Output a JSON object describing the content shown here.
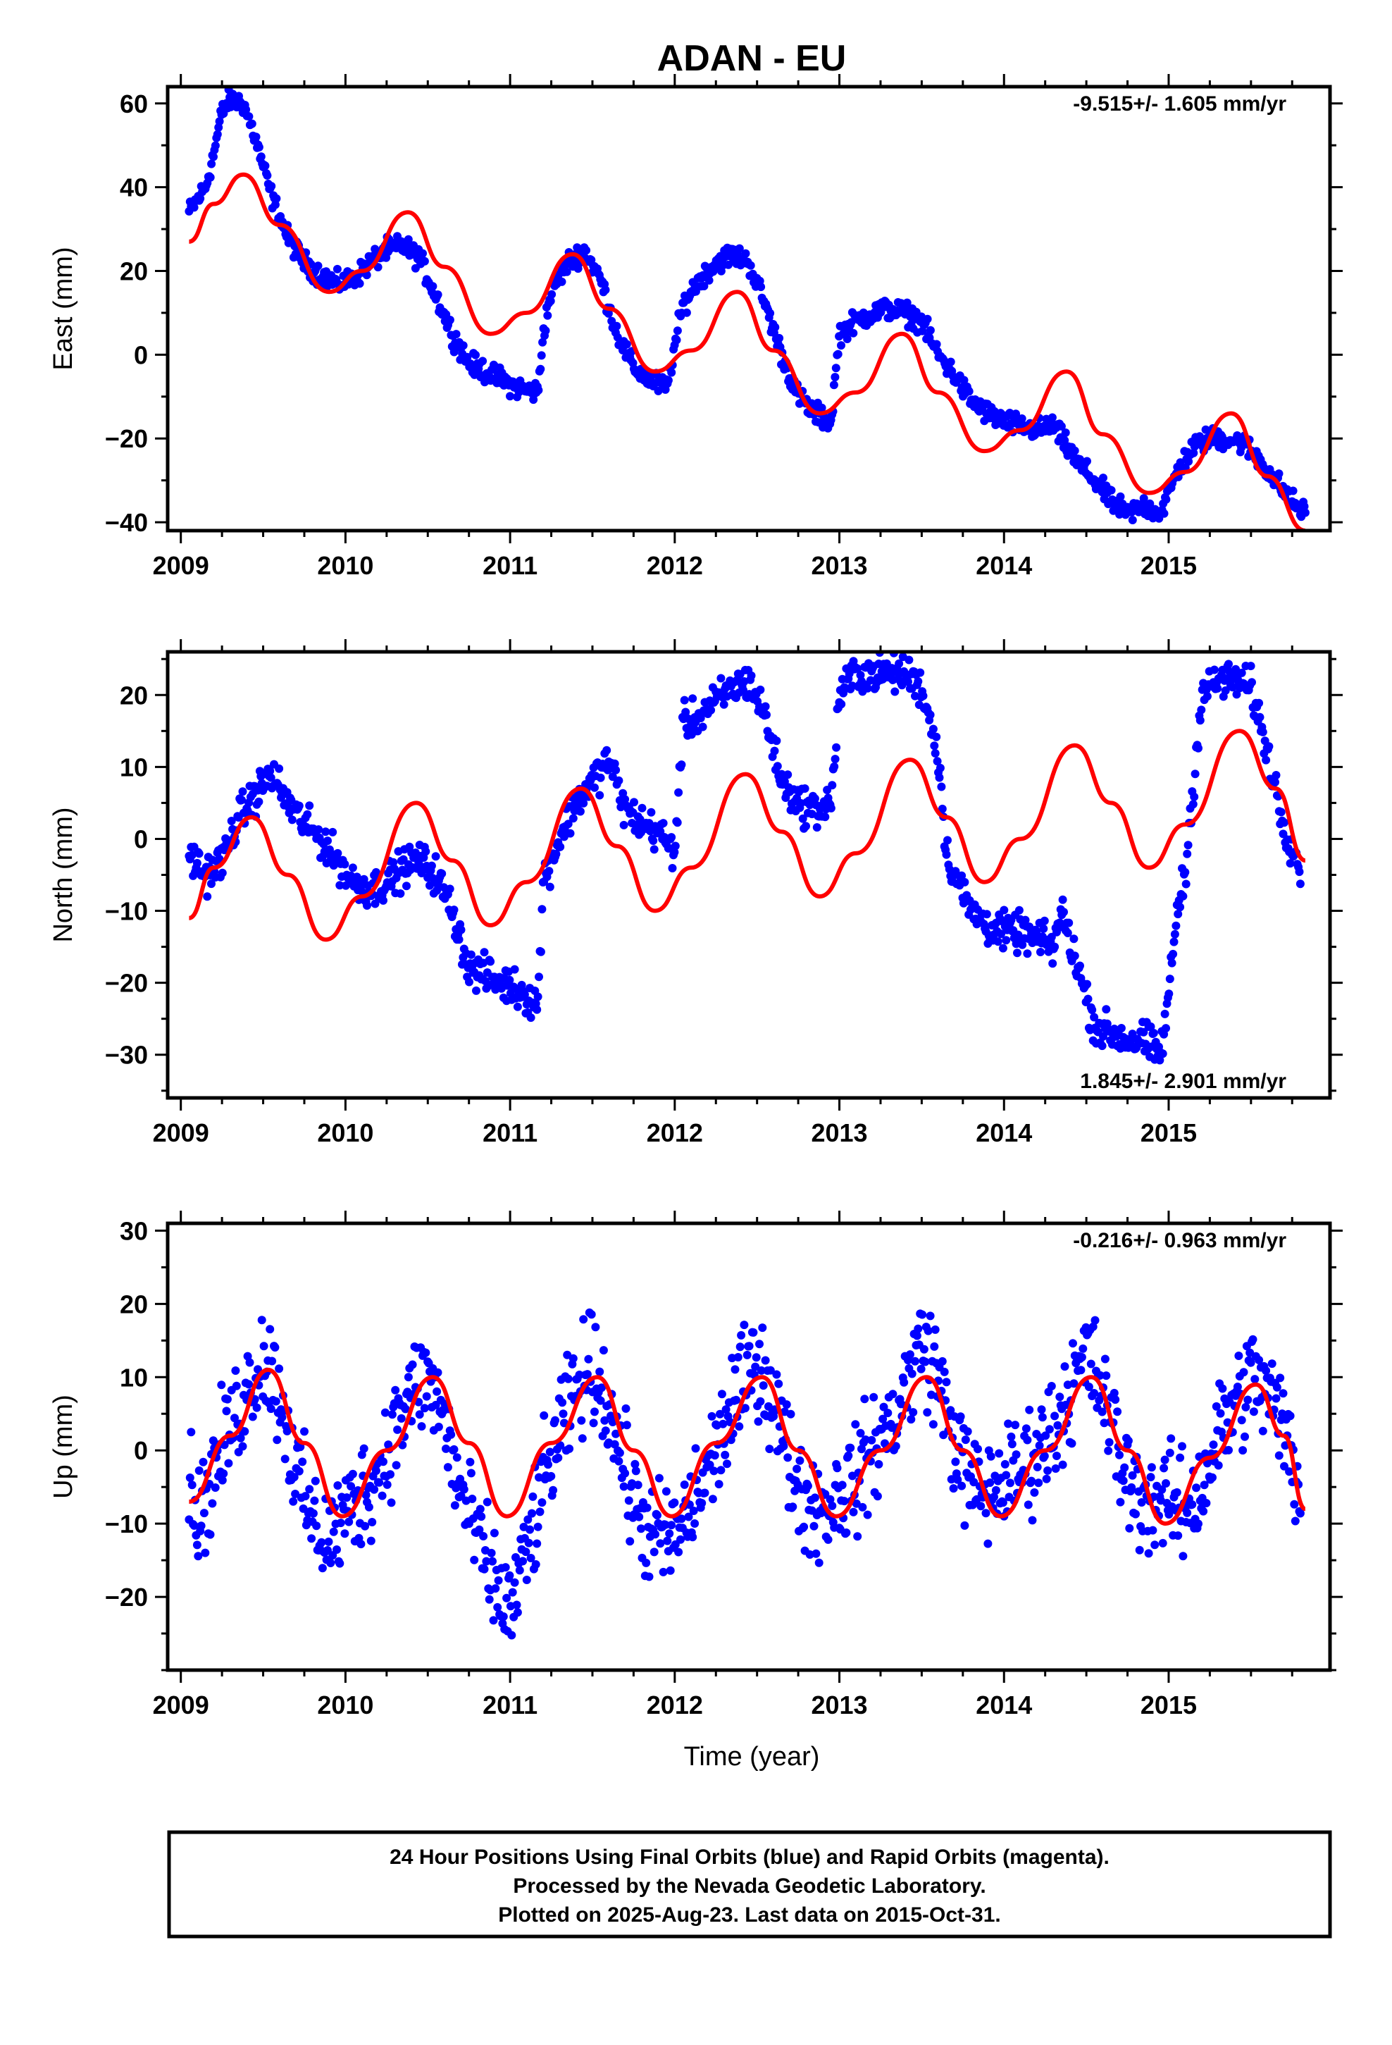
{
  "chart_data": {
    "type": "scatter",
    "title": "ADAN - EU",
    "xlabel": "Time (year)",
    "x_ticks": [
      "2009",
      "2010",
      "2011",
      "2012",
      "2013",
      "2014",
      "2015"
    ],
    "xlim": [
      2008.92,
      2015.98
    ],
    "colors": {
      "observed": "#0000ff",
      "model": "#ff0000"
    },
    "panels": [
      {
        "ylabel": "East (mm)",
        "ylim": [
          -42,
          64
        ],
        "y_ticks": [
          -40,
          -20,
          0,
          20,
          40,
          60
        ],
        "rate_text": "-9.515+/- 1.605 mm/yr",
        "rate_position": "top-right",
        "series": [
          {
            "role": "observed",
            "x": [
              2009.05,
              2009.15,
              2009.2,
              2009.25,
              2009.3,
              2009.38,
              2009.45,
              2009.55,
              2009.65,
              2009.75,
              2009.85,
              2009.95,
              2010.05,
              2010.15,
              2010.25,
              2010.35,
              2010.45,
              2010.55,
              2010.65,
              2010.75,
              2010.85,
              2010.95,
              2011.05,
              2011.17,
              2011.2,
              2011.25,
              2011.35,
              2011.45,
              2011.55,
              2011.65,
              2011.75,
              2011.85,
              2011.95,
              2012.05,
              2012.15,
              2012.25,
              2012.35,
              2012.45,
              2012.55,
              2012.65,
              2012.75,
              2012.85,
              2012.95,
              2013.0,
              2013.1,
              2013.2,
              2013.3,
              2013.4,
              2013.5,
              2013.6,
              2013.7,
              2013.8,
              2013.9,
              2014.0,
              2014.1,
              2014.2,
              2014.3,
              2014.35,
              2014.45,
              2014.55,
              2014.65,
              2014.75,
              2014.85,
              2014.95,
              2015.05,
              2015.15,
              2015.25,
              2015.35,
              2015.45,
              2015.55,
              2015.65,
              2015.75,
              2015.83
            ],
            "y": [
              34,
              40,
              48,
              58,
              61,
              60,
              52,
              38,
              28,
              22,
              19,
              17,
              18,
              22,
              25,
              26,
              23,
              14,
              5,
              -2,
              -4,
              -6,
              -8,
              -9,
              5,
              15,
              22,
              25,
              18,
              5,
              -3,
              -6,
              -8,
              12,
              18,
              22,
              24,
              22,
              12,
              0,
              -10,
              -14,
              -16,
              5,
              8,
              10,
              11,
              10,
              8,
              0,
              -5,
              -11,
              -14,
              -16,
              -17,
              -18,
              -17,
              -20,
              -26,
              -30,
              -35,
              -38,
              -36,
              -38,
              -28,
              -22,
              -20,
              -20,
              -21,
              -25,
              -30,
              -35,
              -38
            ]
          },
          {
            "role": "model",
            "x": [
              2009.05,
              2009.2,
              2009.38,
              2009.6,
              2009.9,
              2010.1,
              2010.38,
              2010.6,
              2010.88,
              2011.1,
              2011.38,
              2011.6,
              2011.88,
              2012.1,
              2012.38,
              2012.6,
              2012.88,
              2013.1,
              2013.38,
              2013.6,
              2013.88,
              2014.1,
              2014.38,
              2014.6,
              2014.88,
              2015.1,
              2015.38,
              2015.6,
              2015.83
            ],
            "y": [
              27,
              36,
              43,
              31,
              15,
              20,
              34,
              21,
              5,
              10,
              24,
              11,
              -4,
              1,
              15,
              1,
              -14,
              -9,
              5,
              -9,
              -23,
              -18,
              -4,
              -19,
              -33,
              -28,
              -14,
              -29,
              -42
            ]
          }
        ]
      },
      {
        "ylabel": "North (mm)",
        "ylim": [
          -36,
          26
        ],
        "y_ticks": [
          -30,
          -20,
          -10,
          0,
          10,
          20
        ],
        "rate_text": "1.845+/- 2.901 mm/yr",
        "rate_position": "bottom-right",
        "series": [
          {
            "role": "observed",
            "x": [
              2009.05,
              2009.15,
              2009.25,
              2009.35,
              2009.45,
              2009.55,
              2009.65,
              2009.75,
              2009.85,
              2009.95,
              2010.05,
              2010.15,
              2010.25,
              2010.35,
              2010.45,
              2010.55,
              2010.65,
              2010.75,
              2010.85,
              2010.95,
              2011.05,
              2011.17,
              2011.2,
              2011.3,
              2011.4,
              2011.5,
              2011.6,
              2011.7,
              2011.8,
              2011.9,
              2012.0,
              2012.05,
              2012.15,
              2012.25,
              2012.35,
              2012.45,
              2012.55,
              2012.65,
              2012.75,
              2012.85,
              2012.95,
              2013.0,
              2013.1,
              2013.2,
              2013.3,
              2013.4,
              2013.5,
              2013.6,
              2013.65,
              2013.7,
              2013.8,
              2013.9,
              2014.0,
              2014.1,
              2014.2,
              2014.3,
              2014.35,
              2014.45,
              2014.55,
              2014.65,
              2014.75,
              2014.85,
              2014.95,
              2015.0,
              2015.05,
              2015.1,
              2015.2,
              2015.3,
              2015.4,
              2015.5,
              2015.6,
              2015.7,
              2015.8
            ],
            "y": [
              -2,
              -5,
              -3,
              3,
              6,
              9,
              5,
              2,
              0,
              -3,
              -6,
              -7,
              -6,
              -4,
              -3,
              -5,
              -10,
              -18,
              -19,
              -20,
              -21,
              -23,
              -6,
              0,
              5,
              8,
              11,
              4,
              2,
              1,
              -2,
              16,
              17,
              19,
              21,
              22,
              17,
              8,
              5,
              4,
              5,
              20,
              23,
              23,
              23,
              23,
              21,
              12,
              -2,
              -5,
              -10,
              -12,
              -13,
              -13,
              -14,
              -15,
              -10,
              -18,
              -26,
              -27,
              -28,
              -28,
              -30,
              -22,
              -10,
              -5,
              20,
              22,
              22,
              21,
              12,
              2,
              -4
            ]
          },
          {
            "role": "model",
            "x": [
              2009.05,
              2009.2,
              2009.43,
              2009.65,
              2009.88,
              2010.1,
              2010.43,
              2010.65,
              2010.88,
              2011.1,
              2011.43,
              2011.65,
              2011.88,
              2012.1,
              2012.43,
              2012.65,
              2012.88,
              2013.1,
              2013.43,
              2013.65,
              2013.88,
              2014.1,
              2014.43,
              2014.65,
              2014.88,
              2015.1,
              2015.43,
              2015.65,
              2015.83
            ],
            "y": [
              -11,
              -4,
              3,
              -5,
              -14,
              -8,
              5,
              -3,
              -12,
              -6,
              7,
              -1,
              -10,
              -4,
              9,
              1,
              -8,
              -2,
              11,
              3,
              -6,
              0,
              13,
              5,
              -4,
              2,
              15,
              7,
              -3
            ]
          }
        ]
      },
      {
        "ylabel": "Up (mm)",
        "ylim": [
          -30,
          31
        ],
        "y_ticks": [
          -20,
          -10,
          0,
          10,
          20,
          30
        ],
        "rate_text": "-0.216+/- 0.963 mm/yr",
        "rate_position": "top-right",
        "series": [
          {
            "role": "observed",
            "x": [
              2009.05,
              2009.12,
              2009.2,
              2009.3,
              2009.4,
              2009.5,
              2009.6,
              2009.7,
              2009.8,
              2009.9,
              2010.0,
              2010.1,
              2010.2,
              2010.3,
              2010.4,
              2010.5,
              2010.6,
              2010.7,
              2010.8,
              2010.9,
              2011.0,
              2011.1,
              2011.2,
              2011.3,
              2011.4,
              2011.5,
              2011.6,
              2011.7,
              2011.8,
              2011.9,
              2012.0,
              2012.1,
              2012.2,
              2012.3,
              2012.4,
              2012.5,
              2012.6,
              2012.7,
              2012.8,
              2012.9,
              2013.0,
              2013.1,
              2013.2,
              2013.3,
              2013.4,
              2013.5,
              2013.6,
              2013.7,
              2013.8,
              2013.9,
              2014.0,
              2014.1,
              2014.2,
              2014.3,
              2014.4,
              2014.5,
              2014.6,
              2014.7,
              2014.8,
              2014.9,
              2015.0,
              2015.1,
              2015.2,
              2015.3,
              2015.4,
              2015.5,
              2015.6,
              2015.7,
              2015.8
            ],
            "y": [
              -5,
              -9,
              -3,
              3,
              8,
              13,
              8,
              -3,
              -10,
              -12,
              -9,
              -6,
              -3,
              3,
              8,
              10,
              4,
              -6,
              -12,
              -18,
              -22,
              -14,
              -5,
              2,
              8,
              12,
              6,
              -3,
              -10,
              -12,
              -12,
              -8,
              -3,
              3,
              8,
              13,
              7,
              -2,
              -7,
              -8,
              -6,
              -4,
              0,
              3,
              8,
              15,
              10,
              1,
              -5,
              -6,
              -4,
              -3,
              0,
              3,
              8,
              13,
              8,
              -1,
              -6,
              -7,
              -7,
              -8,
              -5,
              2,
              6,
              10,
              8,
              3,
              -6
            ]
          },
          {
            "role": "model",
            "x": [
              2009.05,
              2009.3,
              2009.53,
              2009.75,
              2009.98,
              2010.25,
              2010.53,
              2010.75,
              2010.98,
              2011.25,
              2011.53,
              2011.75,
              2011.98,
              2012.25,
              2012.53,
              2012.75,
              2012.98,
              2013.25,
              2013.53,
              2013.75,
              2013.98,
              2014.25,
              2014.53,
              2014.75,
              2014.98,
              2015.25,
              2015.53,
              2015.7,
              2015.83
            ],
            "y": [
              -7,
              2,
              11,
              1,
              -9,
              0,
              10,
              1,
              -9,
              1,
              10,
              0,
              -9,
              1,
              10,
              0,
              -9,
              0,
              10,
              0,
              -9,
              0,
              10,
              0,
              -10,
              -1,
              9,
              2,
              -8
            ]
          }
        ]
      }
    ],
    "caption": [
      "24 Hour Positions Using Final Orbits (blue) and Rapid Orbits (magenta).",
      "Processed by the Nevada Geodetic Laboratory.",
      "Plotted on 2025-Aug-23. Last data on 2015-Oct-31."
    ]
  }
}
